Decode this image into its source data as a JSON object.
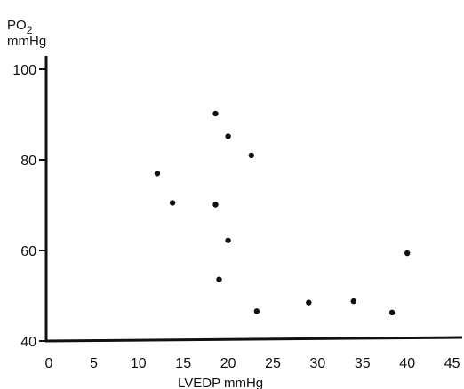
{
  "chart_data": {
    "type": "scatter",
    "title": "",
    "xlabel": "LVEDP mmHg",
    "ylabel_main": "PO",
    "ylabel_sub": "2",
    "ylabel_unit": "mmHg",
    "xlim": [
      0,
      45
    ],
    "ylim": [
      40,
      100
    ],
    "x_ticks": [
      0,
      5,
      10,
      15,
      20,
      25,
      30,
      35,
      40,
      45
    ],
    "y_ticks": [
      40,
      60,
      80,
      100
    ],
    "grid": false,
    "legend": "none",
    "points": [
      {
        "x": 12.1,
        "y": 77.0
      },
      {
        "x": 13.8,
        "y": 70.5
      },
      {
        "x": 18.6,
        "y": 90.2
      },
      {
        "x": 18.6,
        "y": 70.1
      },
      {
        "x": 19.0,
        "y": 53.6
      },
      {
        "x": 20.0,
        "y": 85.2
      },
      {
        "x": 20.0,
        "y": 62.2
      },
      {
        "x": 22.6,
        "y": 81.0
      },
      {
        "x": 23.2,
        "y": 46.6
      },
      {
        "x": 29.0,
        "y": 48.5
      },
      {
        "x": 34.0,
        "y": 48.8
      },
      {
        "x": 38.3,
        "y": 46.3
      },
      {
        "x": 40.0,
        "y": 59.4
      }
    ],
    "colors": {
      "axis": "#111111",
      "point": "#111111"
    }
  }
}
